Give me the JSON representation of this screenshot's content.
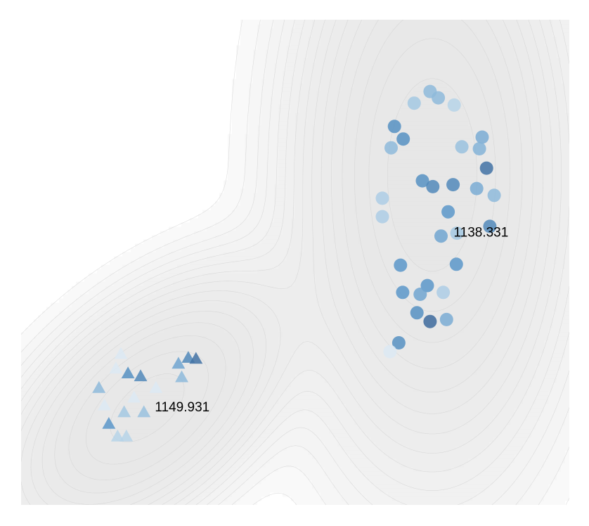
{
  "chart_data": {
    "type": "scatter",
    "title": "",
    "xlabel": "",
    "ylabel": "",
    "grid": false,
    "legend": "none",
    "xlim": [
      0,
      100
    ],
    "ylim": [
      0,
      100
    ],
    "background": {
      "type": "density-contour",
      "levels": 16,
      "colors": {
        "low": "#ffffff",
        "high": "#e6e6e6",
        "line": "#d0d0d0"
      },
      "components": [
        {
          "cx": 75,
          "cy": 68,
          "sx": 11.5,
          "sy": 28,
          "rho": 0,
          "w": 1.0
        },
        {
          "cx": 23,
          "cy": 20,
          "sx": 12.5,
          "sy": 13,
          "rho": 0.55,
          "w": 0.9
        }
      ]
    },
    "annotations": [
      {
        "text": "1138.331",
        "x": 83.9,
        "y": 56.0
      },
      {
        "text": "1149.931",
        "x": 29.4,
        "y": 20.0
      }
    ],
    "series": [
      {
        "marker": "circle",
        "points": [
          {
            "x": 74.6,
            "y": 85.2,
            "v": 0.45
          },
          {
            "x": 71.7,
            "y": 82.8,
            "v": 0.35
          },
          {
            "x": 76.1,
            "y": 83.9,
            "v": 0.45
          },
          {
            "x": 79.0,
            "y": 82.4,
            "v": 0.25
          },
          {
            "x": 68.1,
            "y": 78.0,
            "v": 0.75
          },
          {
            "x": 69.7,
            "y": 75.4,
            "v": 0.75
          },
          {
            "x": 67.5,
            "y": 73.6,
            "v": 0.45
          },
          {
            "x": 84.1,
            "y": 75.8,
            "v": 0.55
          },
          {
            "x": 80.4,
            "y": 73.8,
            "v": 0.4
          },
          {
            "x": 83.6,
            "y": 73.4,
            "v": 0.5
          },
          {
            "x": 84.9,
            "y": 69.4,
            "v": 0.95
          },
          {
            "x": 73.2,
            "y": 66.8,
            "v": 0.75
          },
          {
            "x": 75.1,
            "y": 65.6,
            "v": 0.8
          },
          {
            "x": 78.8,
            "y": 66.0,
            "v": 0.8
          },
          {
            "x": 83.1,
            "y": 65.2,
            "v": 0.55
          },
          {
            "x": 86.3,
            "y": 63.8,
            "v": 0.45
          },
          {
            "x": 65.9,
            "y": 63.2,
            "v": 0.3
          },
          {
            "x": 65.9,
            "y": 59.4,
            "v": 0.3
          },
          {
            "x": 77.9,
            "y": 60.4,
            "v": 0.7
          },
          {
            "x": 85.5,
            "y": 57.4,
            "v": 0.8
          },
          {
            "x": 76.6,
            "y": 55.4,
            "v": 0.6
          },
          {
            "x": 79.5,
            "y": 56.0,
            "v": 0.35
          },
          {
            "x": 69.2,
            "y": 49.4,
            "v": 0.7
          },
          {
            "x": 79.4,
            "y": 49.6,
            "v": 0.7
          },
          {
            "x": 69.6,
            "y": 43.8,
            "v": 0.7
          },
          {
            "x": 74.1,
            "y": 45.2,
            "v": 0.7
          },
          {
            "x": 72.8,
            "y": 43.4,
            "v": 0.6
          },
          {
            "x": 77.0,
            "y": 43.8,
            "v": 0.3
          },
          {
            "x": 72.2,
            "y": 39.6,
            "v": 0.75
          },
          {
            "x": 74.6,
            "y": 37.8,
            "v": 1.0
          },
          {
            "x": 77.6,
            "y": 38.2,
            "v": 0.55
          },
          {
            "x": 68.9,
            "y": 33.4,
            "v": 0.75
          },
          {
            "x": 67.3,
            "y": 31.6,
            "v": 0.05
          }
        ]
      },
      {
        "marker": "triangle",
        "points": [
          {
            "x": 18.2,
            "y": 31.0,
            "v": 0.05
          },
          {
            "x": 17.3,
            "y": 28.0,
            "v": 0.05
          },
          {
            "x": 19.5,
            "y": 27.0,
            "v": 0.75
          },
          {
            "x": 21.8,
            "y": 26.4,
            "v": 0.8
          },
          {
            "x": 28.7,
            "y": 29.0,
            "v": 0.6
          },
          {
            "x": 30.5,
            "y": 30.2,
            "v": 0.8
          },
          {
            "x": 31.9,
            "y": 30.0,
            "v": 0.95
          },
          {
            "x": 29.3,
            "y": 26.2,
            "v": 0.45
          },
          {
            "x": 14.2,
            "y": 24.0,
            "v": 0.45
          },
          {
            "x": 24.6,
            "y": 24.0,
            "v": 0.05
          },
          {
            "x": 20.6,
            "y": 22.0,
            "v": 0.05
          },
          {
            "x": 15.2,
            "y": 20.4,
            "v": 0.05
          },
          {
            "x": 18.8,
            "y": 19.0,
            "v": 0.35
          },
          {
            "x": 22.4,
            "y": 19.0,
            "v": 0.4
          },
          {
            "x": 16.0,
            "y": 16.6,
            "v": 0.7
          },
          {
            "x": 17.6,
            "y": 14.0,
            "v": 0.25
          },
          {
            "x": 19.2,
            "y": 14.0,
            "v": 0.25
          }
        ]
      }
    ]
  }
}
